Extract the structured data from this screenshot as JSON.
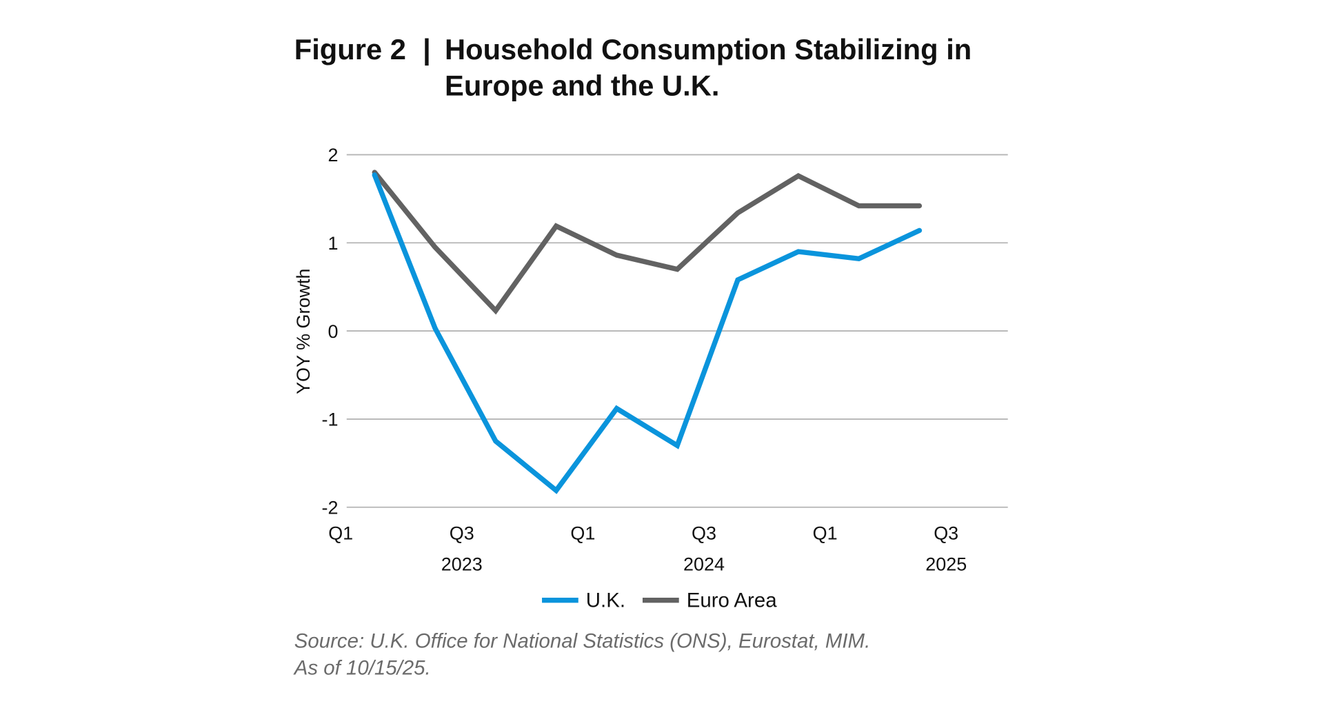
{
  "chart_data": {
    "type": "line",
    "title_prefix": "Figure 2",
    "title_separator": "|",
    "title_line1": "Household Consumption Stabilizing in",
    "title_line2": "Europe and the U.K.",
    "xlabel": "",
    "ylabel": "YOY % Growth",
    "ylim": [
      -2,
      2
    ],
    "yticks": [
      "2",
      "1",
      "0",
      "-1",
      "-2"
    ],
    "ytick_values": [
      2,
      1,
      0,
      -1,
      -2
    ],
    "grid": true,
    "x_tick_labels": [
      {
        "quarter": "Q1",
        "year": ""
      },
      {
        "quarter": "Q3",
        "year": "2023"
      },
      {
        "quarter": "Q1",
        "year": ""
      },
      {
        "quarter": "Q3",
        "year": "2024"
      },
      {
        "quarter": "Q1",
        "year": ""
      },
      {
        "quarter": "Q3",
        "year": "2025"
      }
    ],
    "legend_placement": "bottom",
    "series": [
      {
        "name": "U.K.",
        "color": "#0a94dc",
        "values": [
          1.77,
          0.03,
          -1.25,
          -1.81,
          -0.88,
          -1.3,
          0.58,
          0.9,
          0.82,
          1.14
        ]
      },
      {
        "name": "Euro Area",
        "color": "#626262",
        "values": [
          1.8,
          0.95,
          0.23,
          1.19,
          0.86,
          0.7,
          1.34,
          1.76,
          1.42,
          1.42
        ]
      }
    ],
    "source_line1": "Source: U.K. Office for National Statistics (ONS), Eurostat, MIM.",
    "source_line2": "As of 10/15/25."
  }
}
